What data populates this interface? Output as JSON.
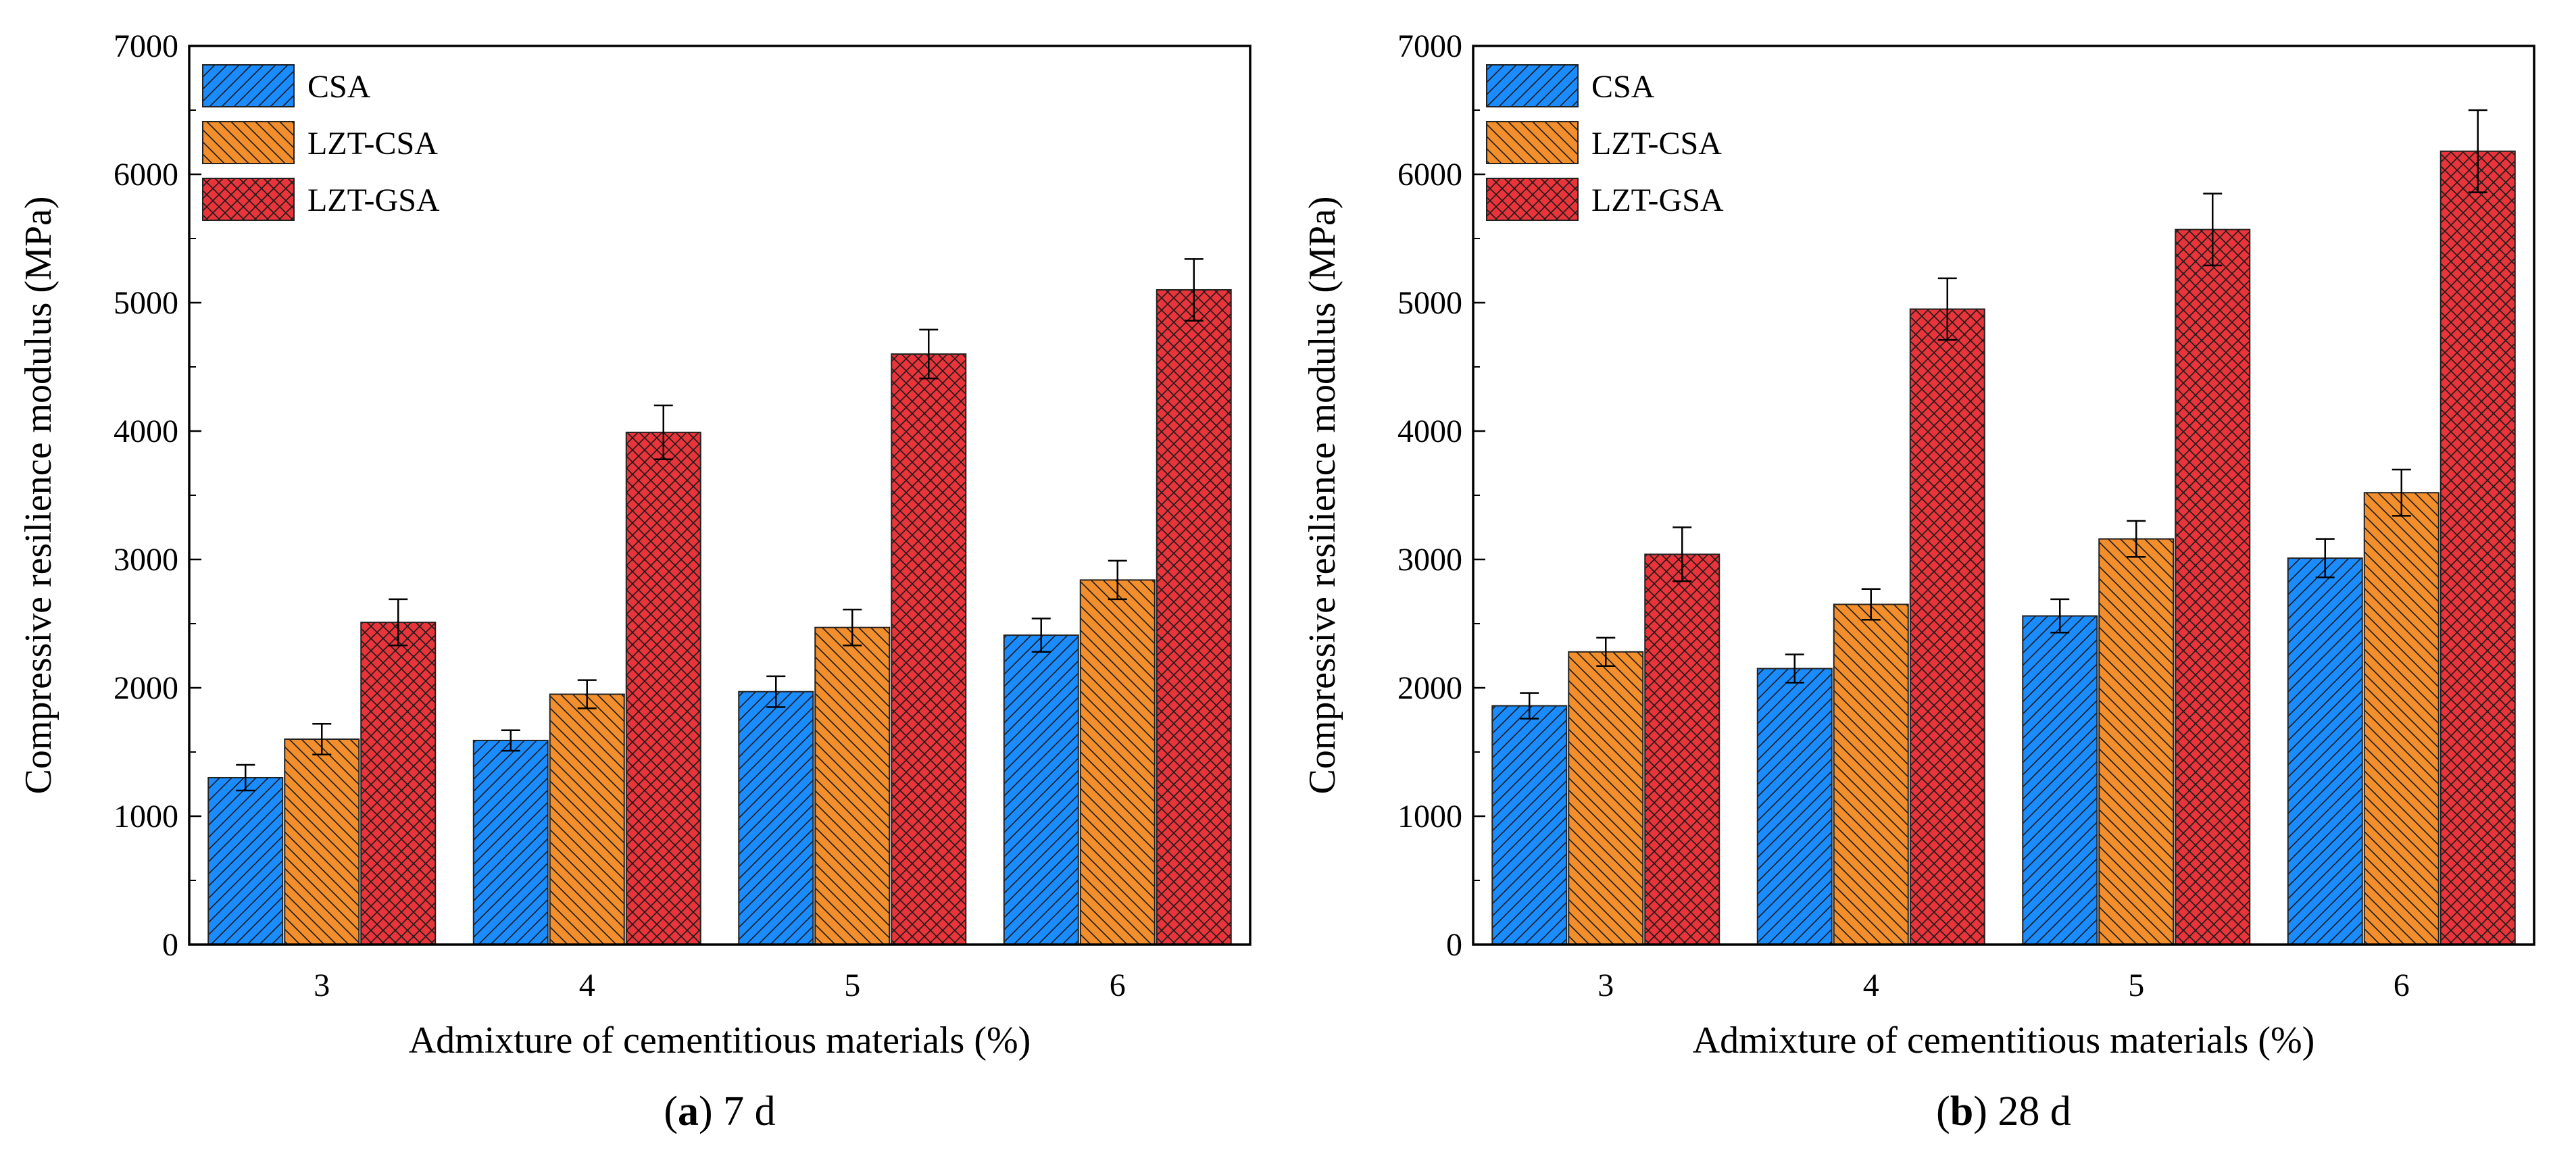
{
  "chart_data": [
    {
      "type": "bar",
      "title": "",
      "caption": {
        "letter": "a",
        "rest": " 7 d"
      },
      "xlabel": "Admixture of cementitious materials (%)",
      "ylabel": "Compressive resilience modulus (MPa)",
      "categories": [
        "3",
        "4",
        "5",
        "6"
      ],
      "ylim": [
        0,
        7000
      ],
      "yticks": [
        "0",
        "1000",
        "2000",
        "3000",
        "4000",
        "5000",
        "6000",
        "7000"
      ],
      "legend_position": "top-left",
      "series": [
        {
          "name": "CSA",
          "color": "#1a8cff",
          "pattern": "diag-left",
          "values": [
            1300,
            1590,
            1970,
            2410
          ],
          "errors": [
            100,
            80,
            120,
            130
          ]
        },
        {
          "name": "LZT-CSA",
          "color": "#f28e2b",
          "pattern": "diag-right",
          "values": [
            1600,
            1950,
            2470,
            2840
          ],
          "errors": [
            120,
            110,
            140,
            150
          ]
        },
        {
          "name": "LZT-GSA",
          "color": "#e8343a",
          "pattern": "cross",
          "values": [
            2510,
            3990,
            4600,
            5100
          ],
          "errors": [
            180,
            210,
            190,
            240
          ]
        }
      ]
    },
    {
      "type": "bar",
      "title": "",
      "caption": {
        "letter": "b",
        "rest": " 28 d"
      },
      "xlabel": "Admixture of cementitious materials (%)",
      "ylabel": "Compressive resilience modulus (MPa)",
      "categories": [
        "3",
        "4",
        "5",
        "6"
      ],
      "ylim": [
        0,
        7000
      ],
      "yticks": [
        "0",
        "1000",
        "2000",
        "3000",
        "4000",
        "5000",
        "6000",
        "7000"
      ],
      "legend_position": "top-left",
      "series": [
        {
          "name": "CSA",
          "color": "#1a8cff",
          "pattern": "diag-left",
          "values": [
            1860,
            2150,
            2560,
            3010
          ],
          "errors": [
            100,
            110,
            130,
            150
          ]
        },
        {
          "name": "LZT-CSA",
          "color": "#f28e2b",
          "pattern": "diag-right",
          "values": [
            2280,
            2650,
            3160,
            3520
          ],
          "errors": [
            110,
            120,
            140,
            180
          ]
        },
        {
          "name": "LZT-GSA",
          "color": "#e8343a",
          "pattern": "cross",
          "values": [
            3040,
            4950,
            5570,
            6180
          ],
          "errors": [
            210,
            240,
            280,
            320
          ]
        }
      ]
    }
  ]
}
